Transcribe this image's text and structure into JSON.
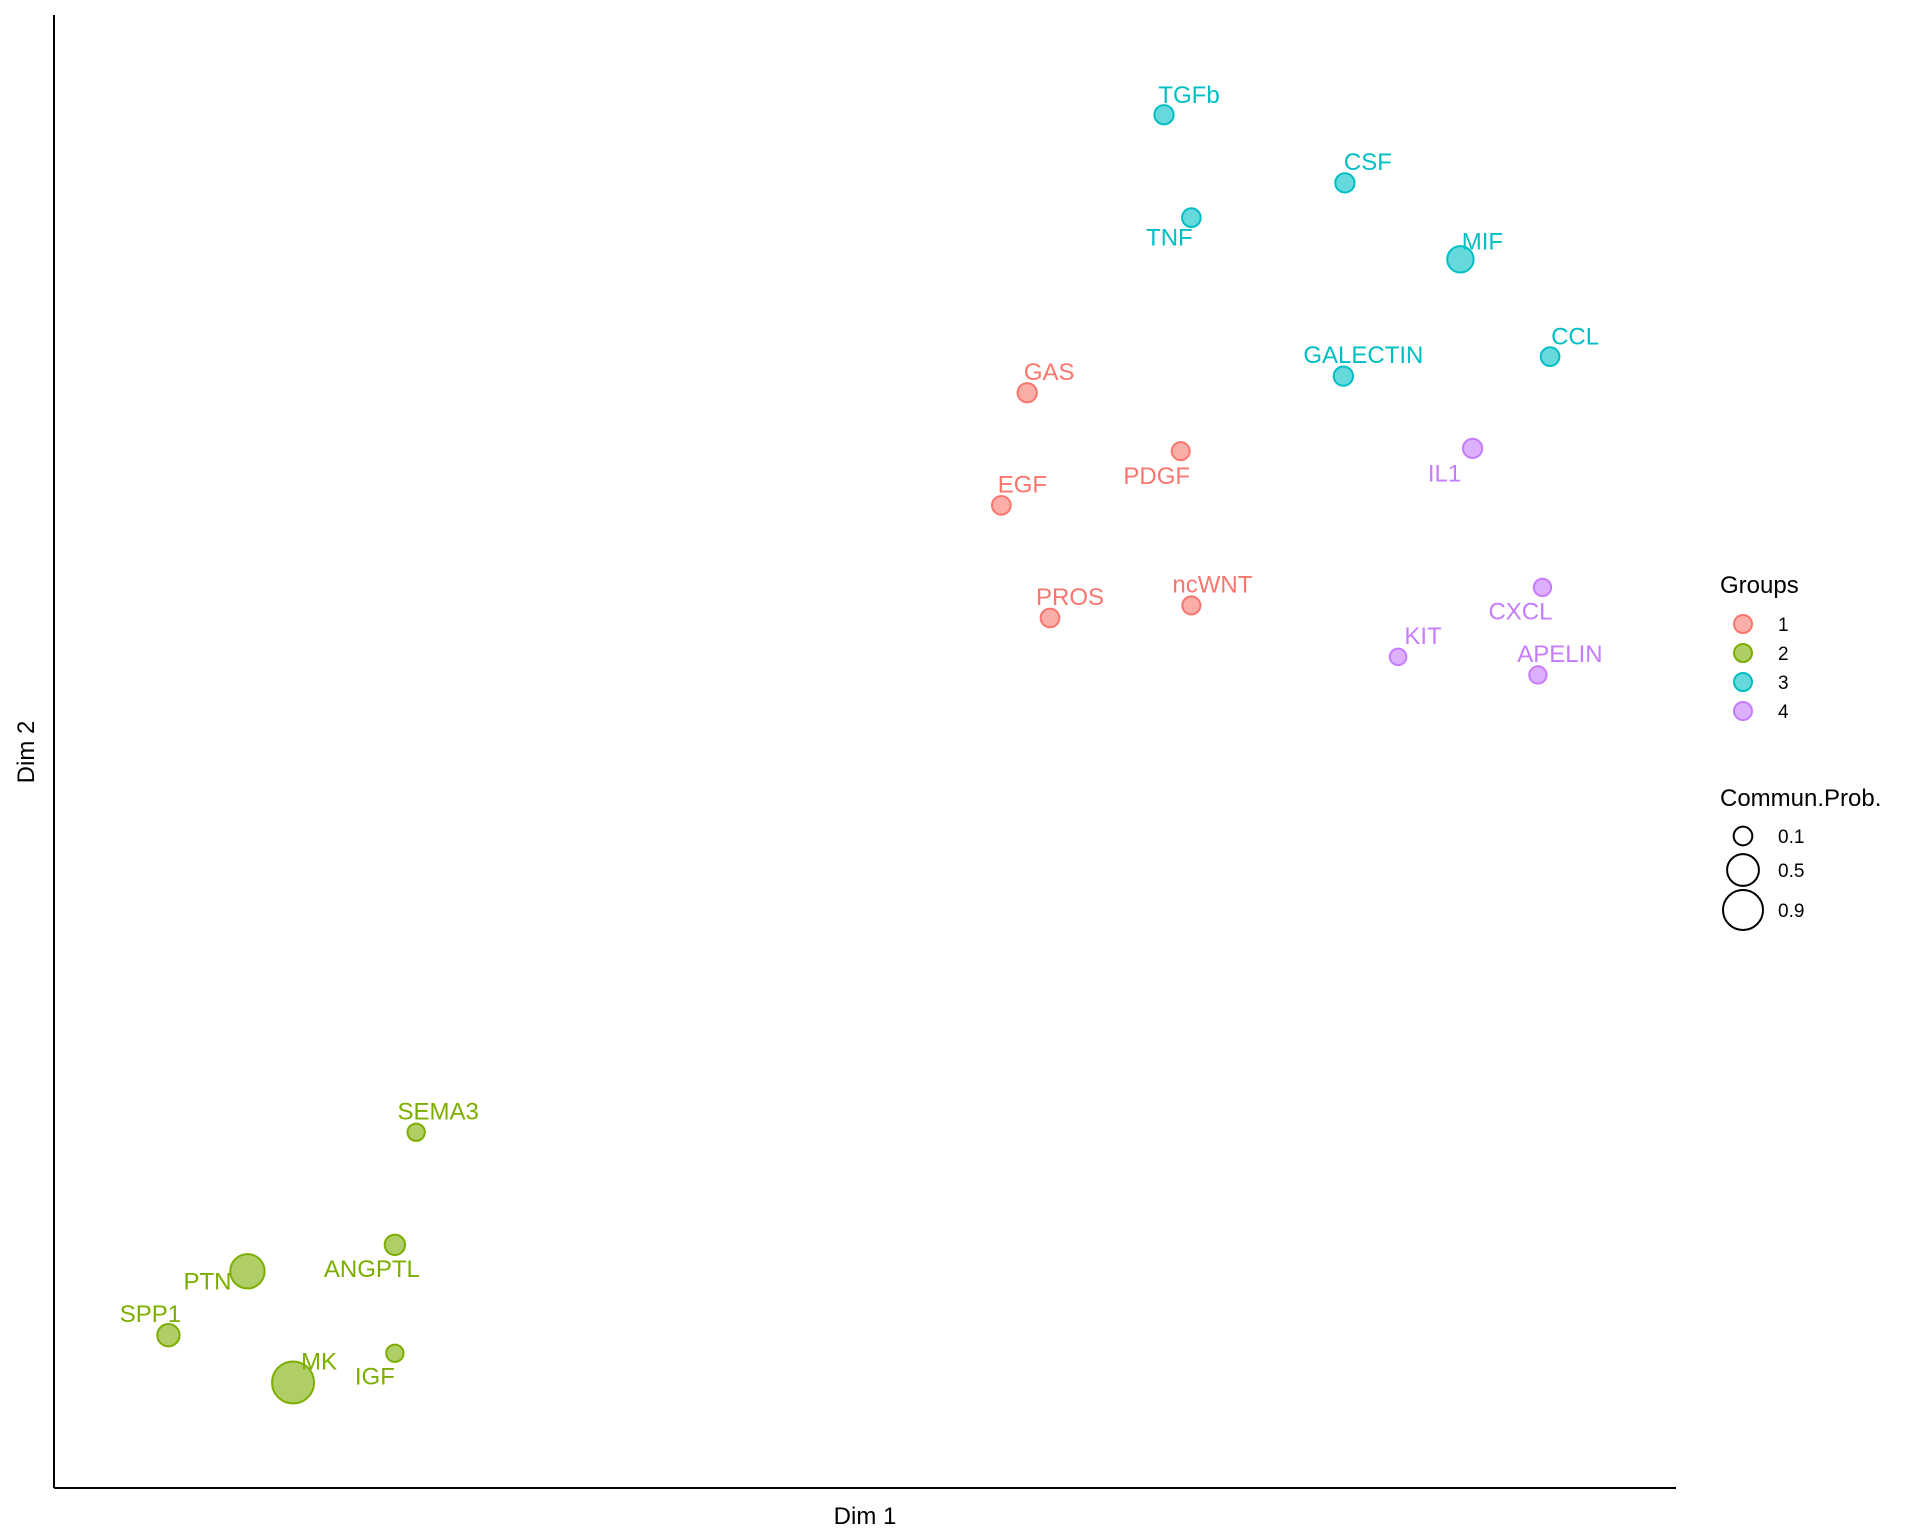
{
  "chart_data": {
    "type": "scatter",
    "title": "",
    "xlabel": "Dim 1",
    "ylabel": "Dim 2",
    "xlim": [
      0,
      100
    ],
    "ylim": [
      0,
      100
    ],
    "grid": false,
    "axis_ticks": false,
    "legend_placement": "right",
    "groups_legend": {
      "title": "Groups",
      "entries": [
        {
          "label": "1",
          "color": "#F8766D"
        },
        {
          "label": "2",
          "color": "#7CAE00"
        },
        {
          "label": "3",
          "color": "#00BFC4"
        },
        {
          "label": "4",
          "color": "#C77CFF"
        }
      ]
    },
    "size_legend": {
      "title": "Commun.Prob.",
      "entries": [
        {
          "label": "0.1",
          "value": 0.1
        },
        {
          "label": "0.5",
          "value": 0.5
        },
        {
          "label": "0.9",
          "value": 0.9
        }
      ]
    },
    "points": [
      {
        "label": "TGFb",
        "group": 3,
        "x": 70.0,
        "y": 95.7,
        "prob": 0.08
      },
      {
        "label": "CSF",
        "group": 3,
        "x": 81.9,
        "y": 90.8,
        "prob": 0.08
      },
      {
        "label": "TNF",
        "group": 3,
        "x": 71.8,
        "y": 88.3,
        "prob": 0.07
      },
      {
        "label": "MIF",
        "group": 3,
        "x": 89.5,
        "y": 85.3,
        "prob": 0.25
      },
      {
        "label": "CCL",
        "group": 3,
        "x": 95.4,
        "y": 78.3,
        "prob": 0.07
      },
      {
        "label": "GALECTIN",
        "group": 3,
        "x": 81.8,
        "y": 76.9,
        "prob": 0.08
      },
      {
        "label": "GAS",
        "group": 1,
        "x": 61.0,
        "y": 75.7,
        "prob": 0.08
      },
      {
        "label": "PDGF",
        "group": 1,
        "x": 71.1,
        "y": 71.5,
        "prob": 0.06
      },
      {
        "label": "IL1",
        "group": 4,
        "x": 90.3,
        "y": 71.7,
        "prob": 0.08
      },
      {
        "label": "EGF",
        "group": 1,
        "x": 59.3,
        "y": 67.6,
        "prob": 0.07
      },
      {
        "label": "ncWNT",
        "group": 1,
        "x": 71.8,
        "y": 60.4,
        "prob": 0.06
      },
      {
        "label": "PROS",
        "group": 1,
        "x": 62.5,
        "y": 59.5,
        "prob": 0.07
      },
      {
        "label": "CXCL",
        "group": 4,
        "x": 94.9,
        "y": 61.7,
        "prob": 0.05
      },
      {
        "label": "KIT",
        "group": 4,
        "x": 85.4,
        "y": 56.7,
        "prob": 0.04
      },
      {
        "label": "APELIN",
        "group": 4,
        "x": 94.6,
        "y": 55.4,
        "prob": 0.05
      },
      {
        "label": "SEMA3",
        "group": 2,
        "x": 20.8,
        "y": 22.5,
        "prob": 0.05
      },
      {
        "label": "ANGPTL",
        "group": 2,
        "x": 19.4,
        "y": 14.4,
        "prob": 0.1
      },
      {
        "label": "PTN",
        "group": 2,
        "x": 9.7,
        "y": 12.5,
        "prob": 0.55
      },
      {
        "label": "SPP1",
        "group": 2,
        "x": 4.5,
        "y": 7.9,
        "prob": 0.14
      },
      {
        "label": "MK",
        "group": 2,
        "x": 12.7,
        "y": 4.5,
        "prob": 0.95
      },
      {
        "label": "IGF",
        "group": 2,
        "x": 19.4,
        "y": 6.6,
        "prob": 0.05
      }
    ]
  }
}
